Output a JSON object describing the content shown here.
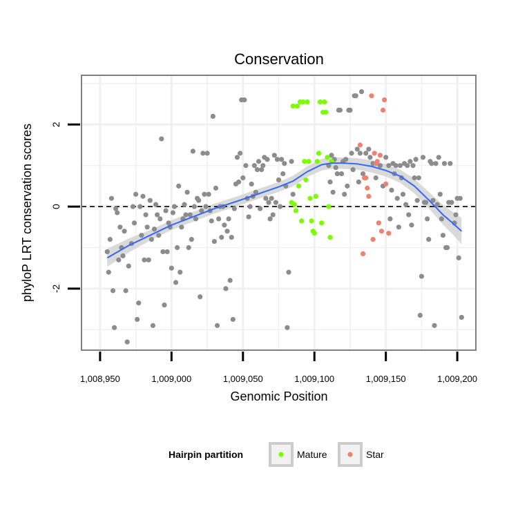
{
  "chart_data": {
    "type": "scatter",
    "title": "Conservation",
    "xlabel": "Genomic Position",
    "ylabel": "phyloP LRT conservation scores",
    "xlim": [
      1008937,
      1009213
    ],
    "ylim": [
      -3.5,
      3.2
    ],
    "x_ticks": [
      1008950,
      1009000,
      1009050,
      1009100,
      1009150,
      1009200
    ],
    "x_tick_labels": [
      "1,008,950",
      "1,009,000",
      "1,009,050",
      "1,009,100",
      "1,009,150",
      "1,009,200"
    ],
    "y_ticks": [
      -2,
      0,
      2
    ],
    "y_tick_labels": [
      "-2",
      "0",
      "2"
    ],
    "reference_line": {
      "y": 0,
      "style": "dashed"
    },
    "grid": true,
    "legend": {
      "title": "Hairpin partition",
      "position": "bottom",
      "entries": [
        {
          "label": "Mature",
          "color": "#7cfc00"
        },
        {
          "label": "Star",
          "color": "#f08070"
        }
      ]
    },
    "colors": {
      "other": "#8c8c8c",
      "smooth": "#3366ff",
      "band": "#d3d3d3"
    },
    "series": [
      {
        "group": "other",
        "points": [
          [
            1008955,
            -1.1
          ],
          [
            1008956,
            -1.6
          ],
          [
            1008957,
            -0.8
          ],
          [
            1008958,
            0.2
          ],
          [
            1008959,
            -2.05
          ],
          [
            1008960,
            -2.95
          ],
          [
            1008961,
            -0.05
          ],
          [
            1008962,
            -0.15
          ],
          [
            1008963,
            -1.3
          ],
          [
            1008964,
            -0.5
          ],
          [
            1008965,
            -1.0
          ],
          [
            1008966,
            -1.2
          ],
          [
            1008967,
            -0.6
          ],
          [
            1008968,
            -2.05
          ],
          [
            1008969,
            -3.3
          ],
          [
            1008970,
            -1.45
          ],
          [
            1008972,
            -0.9
          ],
          [
            1008973,
            0.0
          ],
          [
            1008974,
            -0.4
          ],
          [
            1008975,
            0.3
          ],
          [
            1008976,
            -2.75
          ],
          [
            1008977,
            -2.35
          ],
          [
            1008978,
            0.0
          ],
          [
            1008979,
            -0.7
          ],
          [
            1008980,
            0.25
          ],
          [
            1008981,
            -1.3
          ],
          [
            1008982,
            -0.2
          ],
          [
            1008983,
            -0.5
          ],
          [
            1008984,
            -1.3
          ],
          [
            1008985,
            0.15
          ],
          [
            1008986,
            -0.8
          ],
          [
            1008987,
            -2.9
          ],
          [
            1008988,
            -0.55
          ],
          [
            1008989,
            0.05
          ],
          [
            1008990,
            -0.2
          ],
          [
            1008991,
            -0.7
          ],
          [
            1008992,
            -0.3
          ],
          [
            1008993,
            1.65
          ],
          [
            1008994,
            -1.1
          ],
          [
            1008995,
            -2.4
          ],
          [
            1008996,
            -0.1
          ],
          [
            1008997,
            -1.1
          ],
          [
            1008998,
            -0.4
          ],
          [
            1008999,
            -0.5
          ],
          [
            1009000,
            -1.5
          ],
          [
            1009001,
            -0.15
          ],
          [
            1009002,
            0.0
          ],
          [
            1009003,
            -1.85
          ],
          [
            1009004,
            -1.0
          ],
          [
            1009005,
            0.5
          ],
          [
            1009006,
            -1.6
          ],
          [
            1009007,
            -0.5
          ],
          [
            1009008,
            -0.3
          ],
          [
            1009009,
            0.05
          ],
          [
            1009010,
            -0.2
          ],
          [
            1009011,
            0.35
          ],
          [
            1009012,
            -1.0
          ],
          [
            1009013,
            -0.2
          ],
          [
            1009014,
            -0.8
          ],
          [
            1009015,
            1.35
          ],
          [
            1009016,
            0.0
          ],
          [
            1009017,
            -0.3
          ],
          [
            1009018,
            0.2
          ],
          [
            1009019,
            0.15
          ],
          [
            1009020,
            -2.2
          ],
          [
            1009021,
            -0.1
          ],
          [
            1009022,
            1.3
          ],
          [
            1009023,
            0.3
          ],
          [
            1009024,
            0.0
          ],
          [
            1009025,
            1.3
          ],
          [
            1009026,
            0.3
          ],
          [
            1009027,
            -0.1
          ],
          [
            1009028,
            -0.35
          ],
          [
            1009029,
            2.2
          ],
          [
            1009030,
            -0.85
          ],
          [
            1009031,
            0.45
          ],
          [
            1009032,
            -2.9
          ],
          [
            1009033,
            -0.3
          ],
          [
            1009034,
            0.0
          ],
          [
            1009035,
            -0.75
          ],
          [
            1009036,
            0.0
          ],
          [
            1009037,
            -0.45
          ],
          [
            1009038,
            -2.0
          ],
          [
            1009039,
            -0.6
          ],
          [
            1009040,
            -0.3
          ],
          [
            1009041,
            -1.8
          ],
          [
            1009042,
            -0.75
          ],
          [
            1009043,
            -2.75
          ],
          [
            1009044,
            -0.05
          ],
          [
            1009045,
            0.55
          ],
          [
            1009046,
            1.2
          ],
          [
            1009047,
            0.6
          ],
          [
            1009048,
            1.3
          ],
          [
            1009049,
            2.6
          ],
          [
            1009050,
            0.7
          ],
          [
            1009051,
            2.6
          ],
          [
            1009052,
            1.0
          ],
          [
            1009053,
            0.2
          ],
          [
            1009054,
            -0.25
          ],
          [
            1009055,
            0.0
          ],
          [
            1009056,
            0.55
          ],
          [
            1009057,
            0.25
          ],
          [
            1009058,
            1.0
          ],
          [
            1009059,
            0.35
          ],
          [
            1009060,
            0.9
          ],
          [
            1009061,
            1.1
          ],
          [
            1009062,
            -0.05
          ],
          [
            1009063,
            0.9
          ],
          [
            1009064,
            1.0
          ],
          [
            1009065,
            1.2
          ],
          [
            1009066,
            0.2
          ],
          [
            1009067,
            1.15
          ],
          [
            1009068,
            0.1
          ],
          [
            1009069,
            -0.3
          ],
          [
            1009070,
            0.2
          ],
          [
            1009071,
            -0.2
          ],
          [
            1009072,
            1.25
          ],
          [
            1009073,
            0.1
          ],
          [
            1009074,
            1.15
          ],
          [
            1009075,
            0.65
          ],
          [
            1009076,
            0.0
          ],
          [
            1009077,
            1.15
          ],
          [
            1009078,
            0.8
          ],
          [
            1009079,
            1.05
          ],
          [
            1009080,
            0.5
          ],
          [
            1009081,
            -2.95
          ],
          [
            1009082,
            -1.6
          ],
          [
            1009084,
            1.1
          ],
          [
            1009085,
            0.3
          ],
          [
            1009120,
            1.1
          ],
          [
            1009121,
            0.3
          ],
          [
            1009122,
            1.15
          ],
          [
            1009123,
            0.5
          ],
          [
            1009124,
            2.35
          ],
          [
            1009125,
            2.35
          ],
          [
            1009126,
            1.3
          ],
          [
            1009127,
            0.9
          ],
          [
            1009128,
            2.7
          ],
          [
            1009129,
            2.7
          ],
          [
            1009130,
            1.4
          ],
          [
            1009131,
            0.6
          ],
          [
            1009132,
            1.3
          ],
          [
            1009133,
            2.8
          ],
          [
            1009134,
            0.8
          ],
          [
            1009136,
            1.3
          ],
          [
            1009110,
            1.0
          ],
          [
            1009111,
            0.6
          ],
          [
            1009112,
            1.25
          ],
          [
            1009113,
            0.35
          ],
          [
            1009114,
            1.15
          ],
          [
            1009115,
            0.95
          ],
          [
            1009116,
            0.8
          ],
          [
            1009117,
            2.35
          ],
          [
            1009118,
            2.35
          ],
          [
            1009119,
            0.8
          ],
          [
            1009138,
            1.4
          ],
          [
            1009139,
            1.2
          ],
          [
            1009141,
            1.05
          ],
          [
            1009143,
            0.7
          ],
          [
            1009146,
            1.0
          ],
          [
            1009148,
            0.5
          ],
          [
            1009150,
            1.2
          ],
          [
            1009152,
            1.0
          ],
          [
            1009153,
            -0.3
          ],
          [
            1009154,
            0.4
          ],
          [
            1009155,
            1.05
          ],
          [
            1009156,
            0.8
          ],
          [
            1009157,
            1.0
          ],
          [
            1009158,
            0.2
          ],
          [
            1009159,
            -0.5
          ],
          [
            1009160,
            1.0
          ],
          [
            1009161,
            0.7
          ],
          [
            1009162,
            0.3
          ],
          [
            1009163,
            1.05
          ],
          [
            1009164,
            0.05
          ],
          [
            1009165,
            1.0
          ],
          [
            1009166,
            -0.2
          ],
          [
            1009167,
            1.1
          ],
          [
            1009168,
            -0.45
          ],
          [
            1009169,
            1.0
          ],
          [
            1009170,
            0.7
          ],
          [
            1009171,
            1.15
          ],
          [
            1009172,
            0.15
          ],
          [
            1009173,
            0.7
          ],
          [
            1009174,
            -2.65
          ],
          [
            1009175,
            -1.7
          ],
          [
            1009176,
            1.2
          ],
          [
            1009177,
            0.1
          ],
          [
            1009178,
            0.1
          ],
          [
            1009179,
            -0.3
          ],
          [
            1009180,
            -0.8
          ],
          [
            1009181,
            1.1
          ],
          [
            1009182,
            1.05
          ],
          [
            1009183,
            0.15
          ],
          [
            1009184,
            -2.9
          ],
          [
            1009185,
            1.05
          ],
          [
            1009186,
            0.05
          ],
          [
            1009187,
            1.2
          ],
          [
            1009188,
            0.3
          ],
          [
            1009189,
            -0.3
          ],
          [
            1009190,
            -0.7
          ],
          [
            1009191,
            1.05
          ],
          [
            1009192,
            -1.0
          ],
          [
            1009193,
            -1.0
          ],
          [
            1009194,
            0.1
          ],
          [
            1009195,
            1.05
          ],
          [
            1009196,
            0.1
          ],
          [
            1009198,
            -0.4
          ],
          [
            1009199,
            -0.2
          ],
          [
            1009200,
            0.2
          ],
          [
            1009201,
            -1.25
          ],
          [
            1009202,
            0.2
          ],
          [
            1009203,
            -2.7
          ]
        ]
      },
      {
        "group": "Mature",
        "points": [
          [
            1009084,
            0.1
          ],
          [
            1009085,
            2.45
          ],
          [
            1009086,
            0.05
          ],
          [
            1009087,
            -0.1
          ],
          [
            1009088,
            2.45
          ],
          [
            1009089,
            0.5
          ],
          [
            1009090,
            2.55
          ],
          [
            1009091,
            -0.35
          ],
          [
            1009092,
            2.55
          ],
          [
            1009093,
            1.1
          ],
          [
            1009094,
            0.65
          ],
          [
            1009095,
            2.55
          ],
          [
            1009096,
            1.1
          ],
          [
            1009097,
            0.2
          ],
          [
            1009098,
            -0.35
          ],
          [
            1009099,
            -0.6
          ],
          [
            1009100,
            -0.65
          ],
          [
            1009101,
            0.25
          ],
          [
            1009102,
            1.1
          ],
          [
            1009103,
            1.3
          ],
          [
            1009104,
            2.55
          ],
          [
            1009105,
            -0.4
          ],
          [
            1009106,
            2.3
          ],
          [
            1009107,
            2.55
          ],
          [
            1009108,
            2.3
          ],
          [
            1009109,
            1.2
          ],
          [
            1009110,
            0.0
          ],
          [
            1009111,
            -0.75
          ],
          [
            1009112,
            1.1
          ]
        ]
      },
      {
        "group": "Star",
        "points": [
          [
            1009132,
            1.5
          ],
          [
            1009134,
            -1.15
          ],
          [
            1009136,
            0.7
          ],
          [
            1009137,
            0.45
          ],
          [
            1009138,
            0.25
          ],
          [
            1009140,
            2.7
          ],
          [
            1009141,
            -0.8
          ],
          [
            1009142,
            1.3
          ],
          [
            1009143,
            1.05
          ],
          [
            1009144,
            1.1
          ],
          [
            1009145,
            -0.4
          ],
          [
            1009146,
            1.25
          ],
          [
            1009147,
            -0.6
          ],
          [
            1009148,
            2.35
          ],
          [
            1009149,
            2.6
          ],
          [
            1009150,
            0.55
          ],
          [
            1009152,
            -0.65
          ],
          [
            1009135,
            0.7
          ]
        ]
      }
    ],
    "smooth": {
      "x": [
        1008955,
        1008970,
        1008985,
        1009000,
        1009015,
        1009030,
        1009045,
        1009060,
        1009075,
        1009085,
        1009095,
        1009105,
        1009112,
        1009120,
        1009130,
        1009140,
        1009150,
        1009160,
        1009170,
        1009180,
        1009190,
        1009196,
        1009203
      ],
      "y": [
        -1.25,
        -0.95,
        -0.7,
        -0.45,
        -0.25,
        -0.05,
        0.12,
        0.3,
        0.48,
        0.62,
        0.85,
        1.02,
        1.06,
        1.06,
        1.04,
        0.98,
        0.88,
        0.74,
        0.5,
        0.16,
        -0.2,
        -0.38,
        -0.6
      ],
      "band": [
        0.22,
        0.17,
        0.13,
        0.12,
        0.12,
        0.12,
        0.12,
        0.12,
        0.12,
        0.13,
        0.13,
        0.14,
        0.14,
        0.14,
        0.14,
        0.15,
        0.15,
        0.16,
        0.18,
        0.2,
        0.24,
        0.27,
        0.32
      ]
    }
  }
}
